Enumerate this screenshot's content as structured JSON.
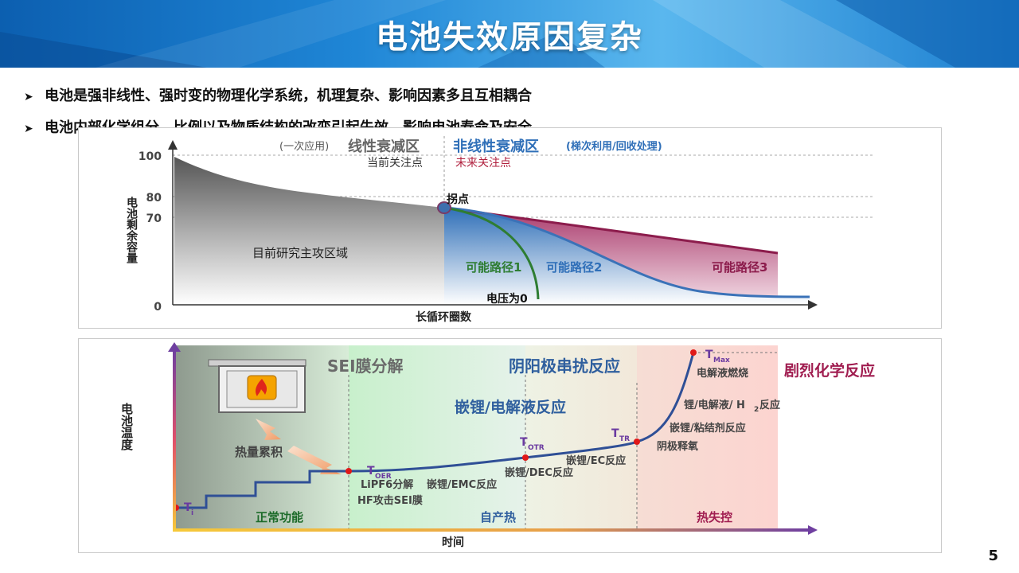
{
  "title": "电池失效原因复杂",
  "bullets": [
    "电池是强非线性、强时变的物理化学系统，机理复杂、影响因素多且互相耦合",
    "电池内部化学组分、比例以及物质结构的改变引起失效，影响电池寿命及安全"
  ],
  "capacity_chart": {
    "y_label": "电池剩余容量",
    "x_label": "长循环圈数",
    "y_ticks": [
      "100",
      "80",
      "70",
      "0"
    ],
    "region_linear_prefix": "(一次应用)",
    "region_linear": "线性衰减区",
    "region_nonlinear": "非线性衰减区",
    "region_nonlinear_suffix": "(梯次利用/回收处理)",
    "current_focus": "当前关注点",
    "future_focus": "未来关注点",
    "knee_point": "拐点",
    "main_research_area": "目前研究主攻区域",
    "path1": "可能路径1",
    "path2": "可能路径2",
    "path3": "可能路径3",
    "voltage_zero": "电压为0"
  },
  "thermal_chart": {
    "y_label": "电池温度",
    "x_label": "时间",
    "phase_sei": "SEI膜分解",
    "phase_anode_cathode": "阴阳极串扰反应",
    "phase_violent": "剧烈化学反应",
    "phase_li_electrolyte": "嵌锂/电解液反应",
    "heat_accumulation": "热量累积",
    "normal_function": "正常功能",
    "self_heating": "自产热",
    "thermal_runaway": "热失控",
    "t_i": "T",
    "t_i_sub": "i",
    "t_oer": "T",
    "t_oer_sub": "OER",
    "t_otr": "T",
    "t_otr_sub": "OTR",
    "t_tr": "T",
    "t_tr_sub": "TR",
    "t_max": "T",
    "t_max_sub": "Max",
    "lipf6": "LiPF6分解",
    "hf_sei": "HF攻击SEI膜",
    "li_emc": "嵌锂/EMC反应",
    "li_dec": "嵌锂/DEC反应",
    "li_ec": "嵌锂/EC反应",
    "cathode_oxygen": "阴极释氧",
    "li_binder": "嵌锂/粘结剂反应",
    "li_electrolyte_h2_a": "锂/电解液/ H",
    "li_electrolyte_h2_sub": "2",
    "li_electrolyte_h2_b": "反应",
    "electrolyte_burn": "电解液燃烧"
  },
  "page_number": "5"
}
